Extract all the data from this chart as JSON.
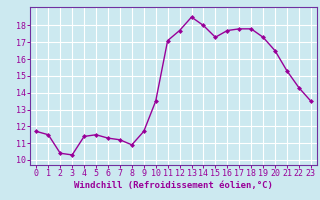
{
  "x": [
    0,
    1,
    2,
    3,
    4,
    5,
    6,
    7,
    8,
    9,
    10,
    11,
    12,
    13,
    14,
    15,
    16,
    17,
    18,
    19,
    20,
    21,
    22,
    23
  ],
  "y": [
    11.7,
    11.5,
    10.4,
    10.3,
    11.4,
    11.5,
    11.3,
    11.2,
    10.9,
    11.7,
    13.5,
    17.1,
    17.7,
    18.5,
    18.0,
    17.3,
    17.7,
    17.8,
    17.8,
    17.3,
    16.5,
    15.3,
    14.3,
    13.5
  ],
  "line_color": "#990099",
  "marker": "D",
  "marker_size": 2.0,
  "bg_color": "#cce9f0",
  "grid_color": "#b0d8e4",
  "xlabel": "Windchill (Refroidissement éolien,°C)",
  "xlabel_fontsize": 6.5,
  "tick_fontsize": 6.0,
  "ylim": [
    9.7,
    19.1
  ],
  "yticks": [
    10,
    11,
    12,
    13,
    14,
    15,
    16,
    17,
    18
  ],
  "xticks": [
    0,
    1,
    2,
    3,
    4,
    5,
    6,
    7,
    8,
    9,
    10,
    11,
    12,
    13,
    14,
    15,
    16,
    17,
    18,
    19,
    20,
    21,
    22,
    23
  ],
  "xlim": [
    -0.5,
    23.5
  ],
  "spine_color": "#7030a0",
  "linewidth": 1.0
}
